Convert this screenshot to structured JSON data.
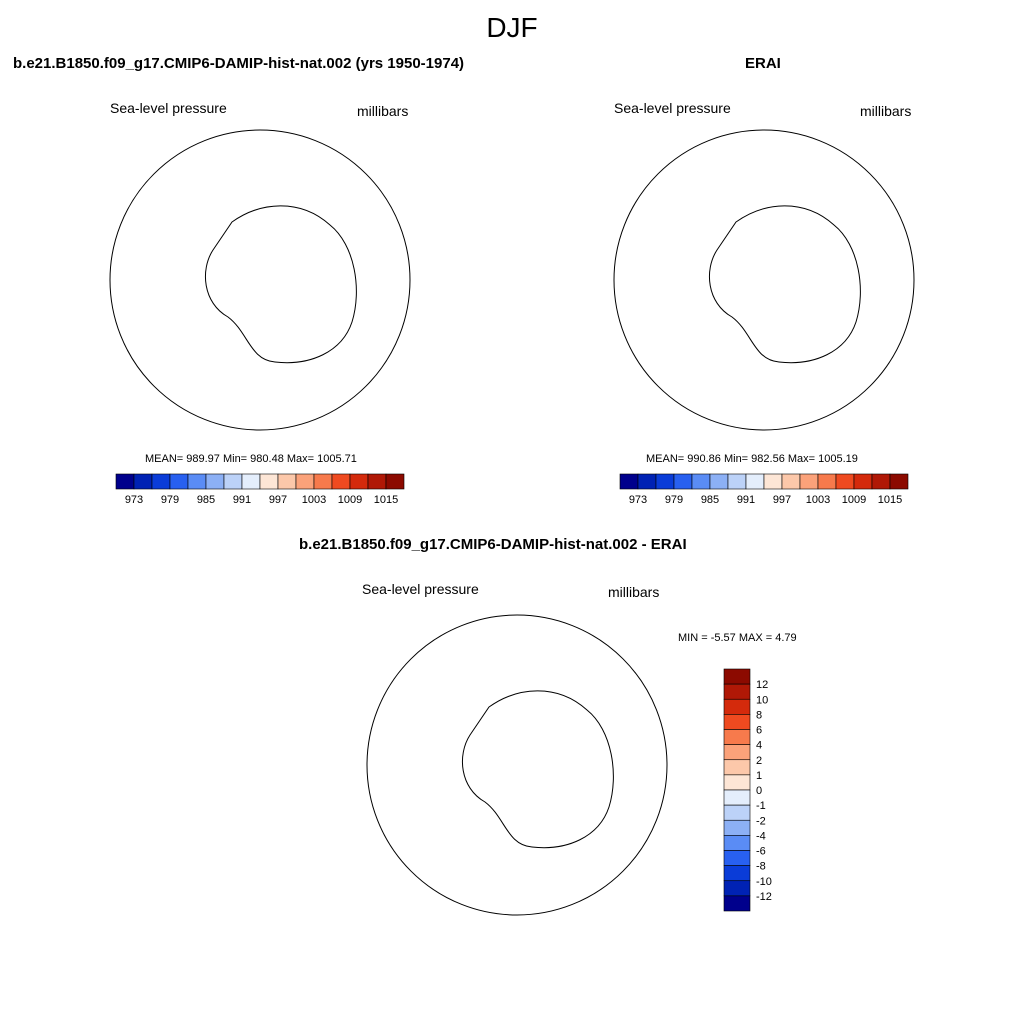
{
  "page": {
    "title": "DJF"
  },
  "panels": [
    {
      "title": "b.e21.B1850.f09_g17.CMIP6-DAMIP-hist-nat.002 (yrs 1950-1974)",
      "left_label": "Sea-level pressure",
      "right_label": "millibars",
      "stats": "MEAN= 989.97  Min= 980.48  Max= 1005.71",
      "mean": 989.97,
      "min": 980.48,
      "max": 1005.71
    },
    {
      "title": "ERAI",
      "left_label": "Sea-level pressure",
      "right_label": "millibars",
      "stats": "MEAN= 990.86  Min= 982.56  Max= 1005.19",
      "mean": 990.86,
      "min": 982.56,
      "max": 1005.19
    },
    {
      "title": "b.e21.B1850.f09_g17.CMIP6-DAMIP-hist-nat.002 - ERAI",
      "left_label": "Sea-level pressure",
      "right_label": "millibars",
      "stats": "MIN =  -5.57 MAX =   4.79",
      "min": -5.57,
      "max": 4.79
    }
  ],
  "colorbars": {
    "abs": {
      "labels": [
        "973",
        "979",
        "985",
        "991",
        "997",
        "1003",
        "1009",
        "1015"
      ],
      "colors": [
        "#00008c",
        "#0022b4",
        "#0a3cd8",
        "#2860f0",
        "#5a8cf5",
        "#8cb0f5",
        "#bcd2f8",
        "#e4eefc",
        "#fde6d6",
        "#fcc8aa",
        "#fba27a",
        "#f77a4c",
        "#ef4a20",
        "#d42a0c",
        "#b01806",
        "#8c0a00"
      ]
    },
    "diff": {
      "labels": [
        "12",
        "10",
        "8",
        "6",
        "4",
        "2",
        "1",
        "0",
        "-1",
        "-2",
        "-4",
        "-6",
        "-8",
        "-10",
        "-12"
      ],
      "colors": [
        "#8c0a00",
        "#b01806",
        "#d42a0c",
        "#ef4a20",
        "#f77a4c",
        "#fba27a",
        "#fcc8aa",
        "#fde6d6",
        "#e4eefc",
        "#bcd2f8",
        "#8cb0f5",
        "#5a8cf5",
        "#2860f0",
        "#0a3cd8",
        "#0022b4",
        "#00008c"
      ]
    }
  }
}
